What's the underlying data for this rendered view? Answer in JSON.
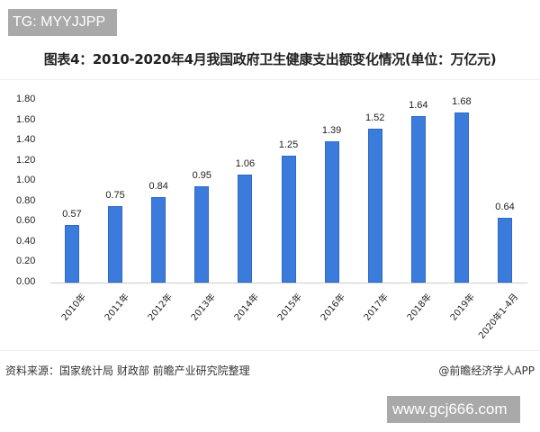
{
  "watermark_tag": "TG: MYYJJPP",
  "title": "图表4：2010-2020年4月我国政府卫生健康支出额变化情况(单位：万亿元)",
  "y_ticks": [
    "1.80",
    "1.60",
    "1.40",
    "1.20",
    "1.00",
    "0.80",
    "0.60",
    "0.40",
    "0.20",
    "0.00"
  ],
  "footer": {
    "source": "资料来源：国家统计局 财政部 前瞻产业研究院整理",
    "brand": "@前瞻经济学人APP"
  },
  "site_watermark": "www.gcj666.com",
  "colors": {
    "bar": "#3a7bdc"
  },
  "chart_data": {
    "type": "bar",
    "title": "图表4：2010-2020年4月我国政府卫生健康支出额变化情况(单位：万亿元)",
    "categories": [
      "2010年",
      "2011年",
      "2012年",
      "2013年",
      "2014年",
      "2015年",
      "2016年",
      "2017年",
      "2018年",
      "2019年",
      "2020年1-4月"
    ],
    "values": [
      0.57,
      0.75,
      0.84,
      0.95,
      1.06,
      1.25,
      1.39,
      1.52,
      1.64,
      1.68,
      0.64
    ],
    "value_labels": [
      "0.57",
      "0.75",
      "0.84",
      "0.95",
      "1.06",
      "1.25",
      "1.39",
      "1.52",
      "1.64",
      "1.68",
      "0.64"
    ],
    "xlabel": "",
    "ylabel": "万亿元",
    "ylim": [
      0,
      1.8
    ],
    "y_step": 0.2,
    "grid": false,
    "legend": null
  }
}
